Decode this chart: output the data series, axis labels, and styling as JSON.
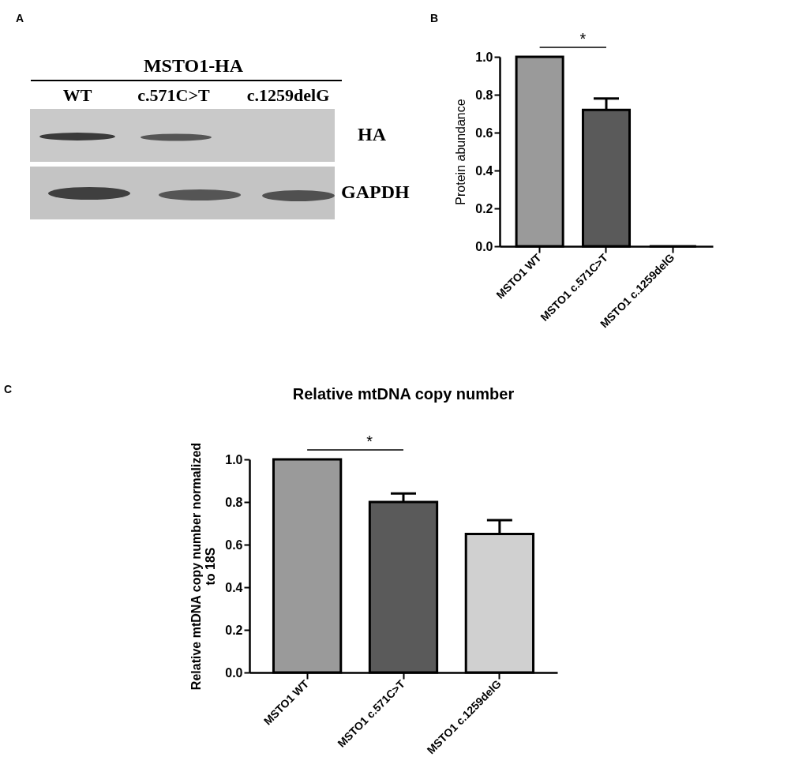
{
  "chart_data": [
    {
      "type": "other",
      "annotations": [
        "A",
        "MSTO1-HA",
        "WT",
        "c.571C>T",
        "c.1259delG",
        "HA",
        "GAPDH"
      ]
    },
    {
      "type": "bar",
      "ylabel": "Protein abundance",
      "categories": [
        "MSTO1 WT",
        "MSTO1 c.571C>T",
        "MSTO1 c.1259delG"
      ],
      "values": [
        1.0,
        0.72,
        0
      ],
      "errors": [
        null,
        0.06,
        null
      ],
      "colors": [
        "#9a9a9a",
        "#5a5a5a",
        "#d0d0d0"
      ],
      "ylim": [
        0,
        1.0
      ],
      "yticks": [
        {
          "value": 0,
          "label": "0.0"
        },
        {
          "value": 0.2,
          "label": "0.2"
        },
        {
          "value": 0.4,
          "label": "0.4"
        },
        {
          "value": 0.6,
          "label": "0.6"
        },
        {
          "value": 0.8,
          "label": "0.8"
        },
        {
          "value": 1,
          "label": "1.0"
        }
      ],
      "annotations": [
        "B",
        "*"
      ]
    },
    {
      "type": "bar",
      "title": "Relative mtDNA copy number",
      "ylabel": "Relative mtDNA copy number normalized to 18S",
      "categories": [
        "MSTO1 WT",
        "MSTO1 c.571C>T",
        "MSTO1 c.1259delG"
      ],
      "values": [
        1.0,
        0.8,
        0.65
      ],
      "errors": [
        null,
        0.04,
        0.065
      ],
      "colors": [
        "#9a9a9a",
        "#5a5a5a",
        "#d0d0d0"
      ],
      "ylim": [
        0,
        1.0
      ],
      "yticks": [
        {
          "value": 0,
          "label": "0.0"
        },
        {
          "value": 0.2,
          "label": "0.2"
        },
        {
          "value": 0.4,
          "label": "0.4"
        },
        {
          "value": 0.6,
          "label": "0.6"
        },
        {
          "value": 0.8,
          "label": "0.8"
        },
        {
          "value": 1,
          "label": "1.0"
        }
      ],
      "annotations": [
        "C",
        "*"
      ]
    }
  ]
}
